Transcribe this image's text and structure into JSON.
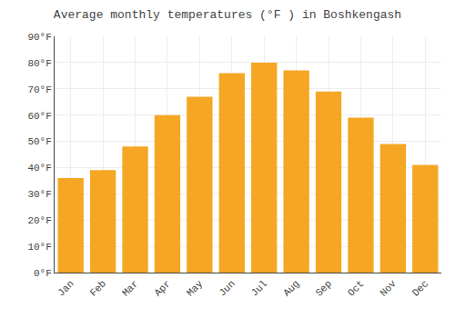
{
  "chart_data": {
    "type": "bar",
    "title": "Average monthly temperatures (°F ) in Boshkengash",
    "categories": [
      "Jan",
      "Feb",
      "Mar",
      "Apr",
      "May",
      "Jun",
      "Jul",
      "Aug",
      "Sep",
      "Oct",
      "Nov",
      "Dec"
    ],
    "values": [
      36,
      39,
      48,
      60,
      67,
      76,
      80,
      77,
      69,
      59,
      49,
      41
    ],
    "color": "#F5A623",
    "ylim": [
      0,
      90
    ],
    "yticks": [
      {
        "value": 0,
        "label": "0°F"
      },
      {
        "value": 10,
        "label": "10°F"
      },
      {
        "value": 20,
        "label": "20°F"
      },
      {
        "value": 30,
        "label": "30°F"
      },
      {
        "value": 40,
        "label": "40°F"
      },
      {
        "value": 50,
        "label": "50°F"
      },
      {
        "value": 60,
        "label": "60°F"
      },
      {
        "value": 70,
        "label": "70°F"
      },
      {
        "value": 80,
        "label": "80°F"
      },
      {
        "value": 90,
        "label": "90°F"
      }
    ],
    "grid": true
  }
}
